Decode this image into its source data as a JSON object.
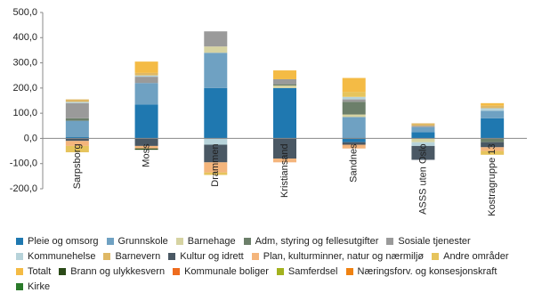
{
  "chart_data": {
    "type": "stacked-bar",
    "categories": [
      "Sarpsborg",
      "Moss",
      "Drammen",
      "Kristiansand",
      "Sandnes",
      "ASSS uten Oslo",
      "Kostragruppe 13"
    ],
    "ylim": [
      -200,
      500
    ],
    "yticks": [
      {
        "value": 500,
        "label": "500,0"
      },
      {
        "value": 400,
        "label": "400,0"
      },
      {
        "value": 300,
        "label": "300,0"
      },
      {
        "value": 200,
        "label": "200,0"
      },
      {
        "value": 100,
        "label": "100,0"
      },
      {
        "value": 0,
        "label": "0,0"
      },
      {
        "value": -100,
        "label": "-100,0"
      },
      {
        "value": -200,
        "label": "-200,0"
      }
    ],
    "series": [
      {
        "name": "Pleie og omsorg",
        "color": "#1f78b0",
        "values": [
          5,
          135,
          200,
          200,
          -15,
          25,
          80
        ]
      },
      {
        "name": "Grunnskole",
        "color": "#6fa1c2",
        "values": [
          65,
          85,
          140,
          0,
          85,
          20,
          30
        ]
      },
      {
        "name": "Barnehage",
        "color": "#d6d3a2",
        "values": [
          0,
          0,
          25,
          10,
          10,
          -15,
          0
        ]
      },
      {
        "name": "Adm, styring og fellesutgifter",
        "color": "#6c7f6a",
        "values": [
          10,
          0,
          0,
          5,
          50,
          0,
          -15
        ]
      },
      {
        "name": "Sosiale tjenester",
        "color": "#9a9a9a",
        "values": [
          60,
          25,
          60,
          20,
          10,
          5,
          0
        ]
      },
      {
        "name": "Kommunehelse",
        "color": "#b7d3da",
        "values": [
          5,
          5,
          -25,
          0,
          10,
          -15,
          10
        ]
      },
      {
        "name": "Barnevern",
        "color": "#dfb865",
        "values": [
          10,
          10,
          0,
          0,
          0,
          10,
          10
        ]
      },
      {
        "name": "Kultur og idrett",
        "color": "#4a5864",
        "values": [
          -10,
          -30,
          -70,
          -80,
          -10,
          -55,
          -20
        ]
      },
      {
        "name": "Plan, kulturminner, natur og nærmiljø",
        "color": "#f4b57c",
        "values": [
          -20,
          -10,
          -40,
          -15,
          -15,
          0,
          -15
        ]
      },
      {
        "name": "Andre områder",
        "color": "#e6c45c",
        "values": [
          -25,
          0,
          -10,
          0,
          20,
          0,
          -15
        ]
      },
      {
        "name": "Totalt",
        "color": "#f4bb45",
        "values": [
          0,
          45,
          0,
          35,
          55,
          0,
          10
        ]
      },
      {
        "name": "Brann og ulykkesvern",
        "color": "#2b4a18",
        "values": [
          0,
          -5,
          0,
          0,
          0,
          0,
          0
        ]
      },
      {
        "name": "Kommunale boliger",
        "color": "#ee6c1f",
        "values": [
          0,
          0,
          0,
          0,
          0,
          0,
          0
        ]
      },
      {
        "name": "Samferdsel",
        "color": "#a3b21f",
        "values": [
          0,
          0,
          0,
          0,
          0,
          0,
          0
        ]
      },
      {
        "name": "Næringsforv. og konsesjonskraft",
        "color": "#ef8212",
        "values": [
          0,
          0,
          0,
          0,
          0,
          0,
          0
        ]
      },
      {
        "name": "Kirke",
        "color": "#2a7a2a",
        "values": [
          0,
          0,
          0,
          0,
          0,
          0,
          0
        ]
      }
    ]
  }
}
